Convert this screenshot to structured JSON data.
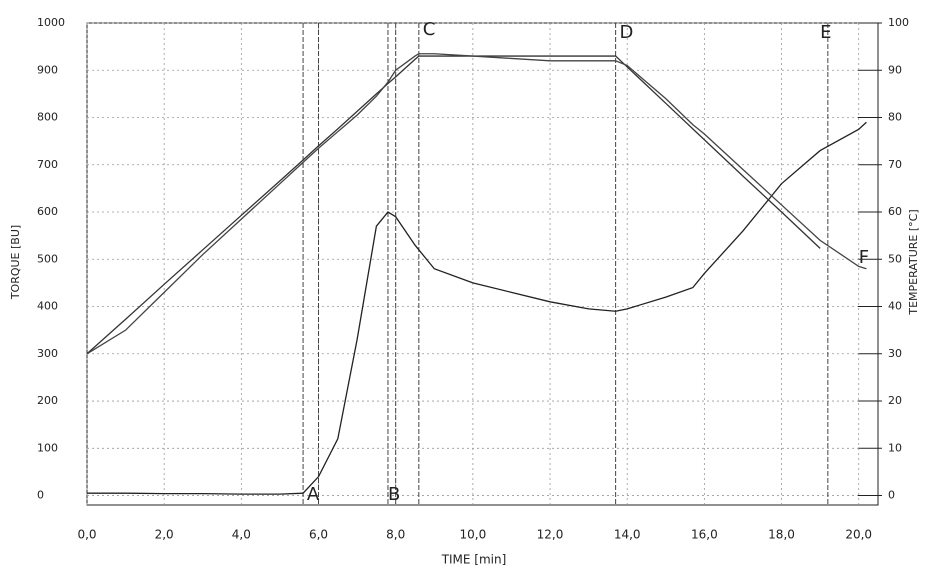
{
  "chart_data": {
    "type": "line",
    "x_label": "TIME [min]",
    "y_label": "TORQUE [BU]",
    "y2_label": "TEMPERATURE [°C]",
    "x": [
      0,
      1,
      2,
      3,
      4,
      5,
      5.6,
      6,
      6.5,
      7,
      7.5,
      7.8,
      8,
      8.5,
      8.6,
      9,
      10,
      11,
      12,
      13,
      13.7,
      14,
      15,
      15.7,
      16,
      17,
      18,
      19,
      20,
      20.2
    ],
    "series": [
      {
        "color": "#222222",
        "values": [
          5,
          5,
          4,
          4,
          3,
          3,
          5,
          40,
          120,
          330,
          570,
          600,
          590,
          530,
          520,
          480,
          450,
          430,
          410,
          395,
          390,
          395,
          420,
          440,
          470,
          560,
          660,
          730,
          775,
          790
        ]
      },
      {
        "color": "#333333",
        "axis": "y2",
        "values": [
          30,
          37.3,
          44.7,
          52,
          59.3,
          66.6,
          71,
          74,
          77.6,
          81.3,
          85,
          87.2,
          88.6,
          92.3,
          93,
          93,
          93,
          93,
          93,
          93,
          93,
          90.7,
          83,
          77.6,
          75.3,
          67.6,
          60,
          52.3,
          null,
          null
        ]
      },
      {
        "color": "#444444",
        "axis": "y2",
        "values": [
          30,
          35,
          43,
          51,
          58.5,
          66,
          70.5,
          73.5,
          77,
          80.5,
          84.5,
          87.5,
          90,
          93,
          93.5,
          93.5,
          93,
          92.5,
          92,
          92,
          92,
          91,
          84,
          78.5,
          76.5,
          69,
          61.5,
          54,
          48.5,
          48
        ]
      }
    ],
    "annotations": [
      "A",
      "B",
      "C",
      "D",
      "E",
      "F"
    ],
    "xlim": [
      0,
      20.5
    ],
    "xticks": [
      {
        "value": 0,
        "label": "0,0"
      },
      {
        "value": 2,
        "label": "2,0"
      },
      {
        "value": 4,
        "label": "4,0"
      },
      {
        "value": 6,
        "label": "6,0"
      },
      {
        "value": 8,
        "label": "8,0"
      },
      {
        "value": 10,
        "label": "10,0"
      },
      {
        "value": 12,
        "label": "12,0"
      },
      {
        "value": 14,
        "label": "14,0"
      },
      {
        "value": 16,
        "label": "16,0"
      },
      {
        "value": 18,
        "label": "18,0"
      },
      {
        "value": 20,
        "label": "20,0"
      }
    ],
    "ylim": [
      -20,
      1000
    ],
    "yticks": [
      0,
      100,
      200,
      300,
      400,
      500,
      600,
      700,
      800,
      900,
      1000
    ],
    "y2lim": [
      -2,
      100
    ],
    "y2ticks": [
      0,
      10,
      20,
      30,
      40,
      50,
      60,
      70,
      80,
      90,
      100
    ],
    "grid": true
  }
}
